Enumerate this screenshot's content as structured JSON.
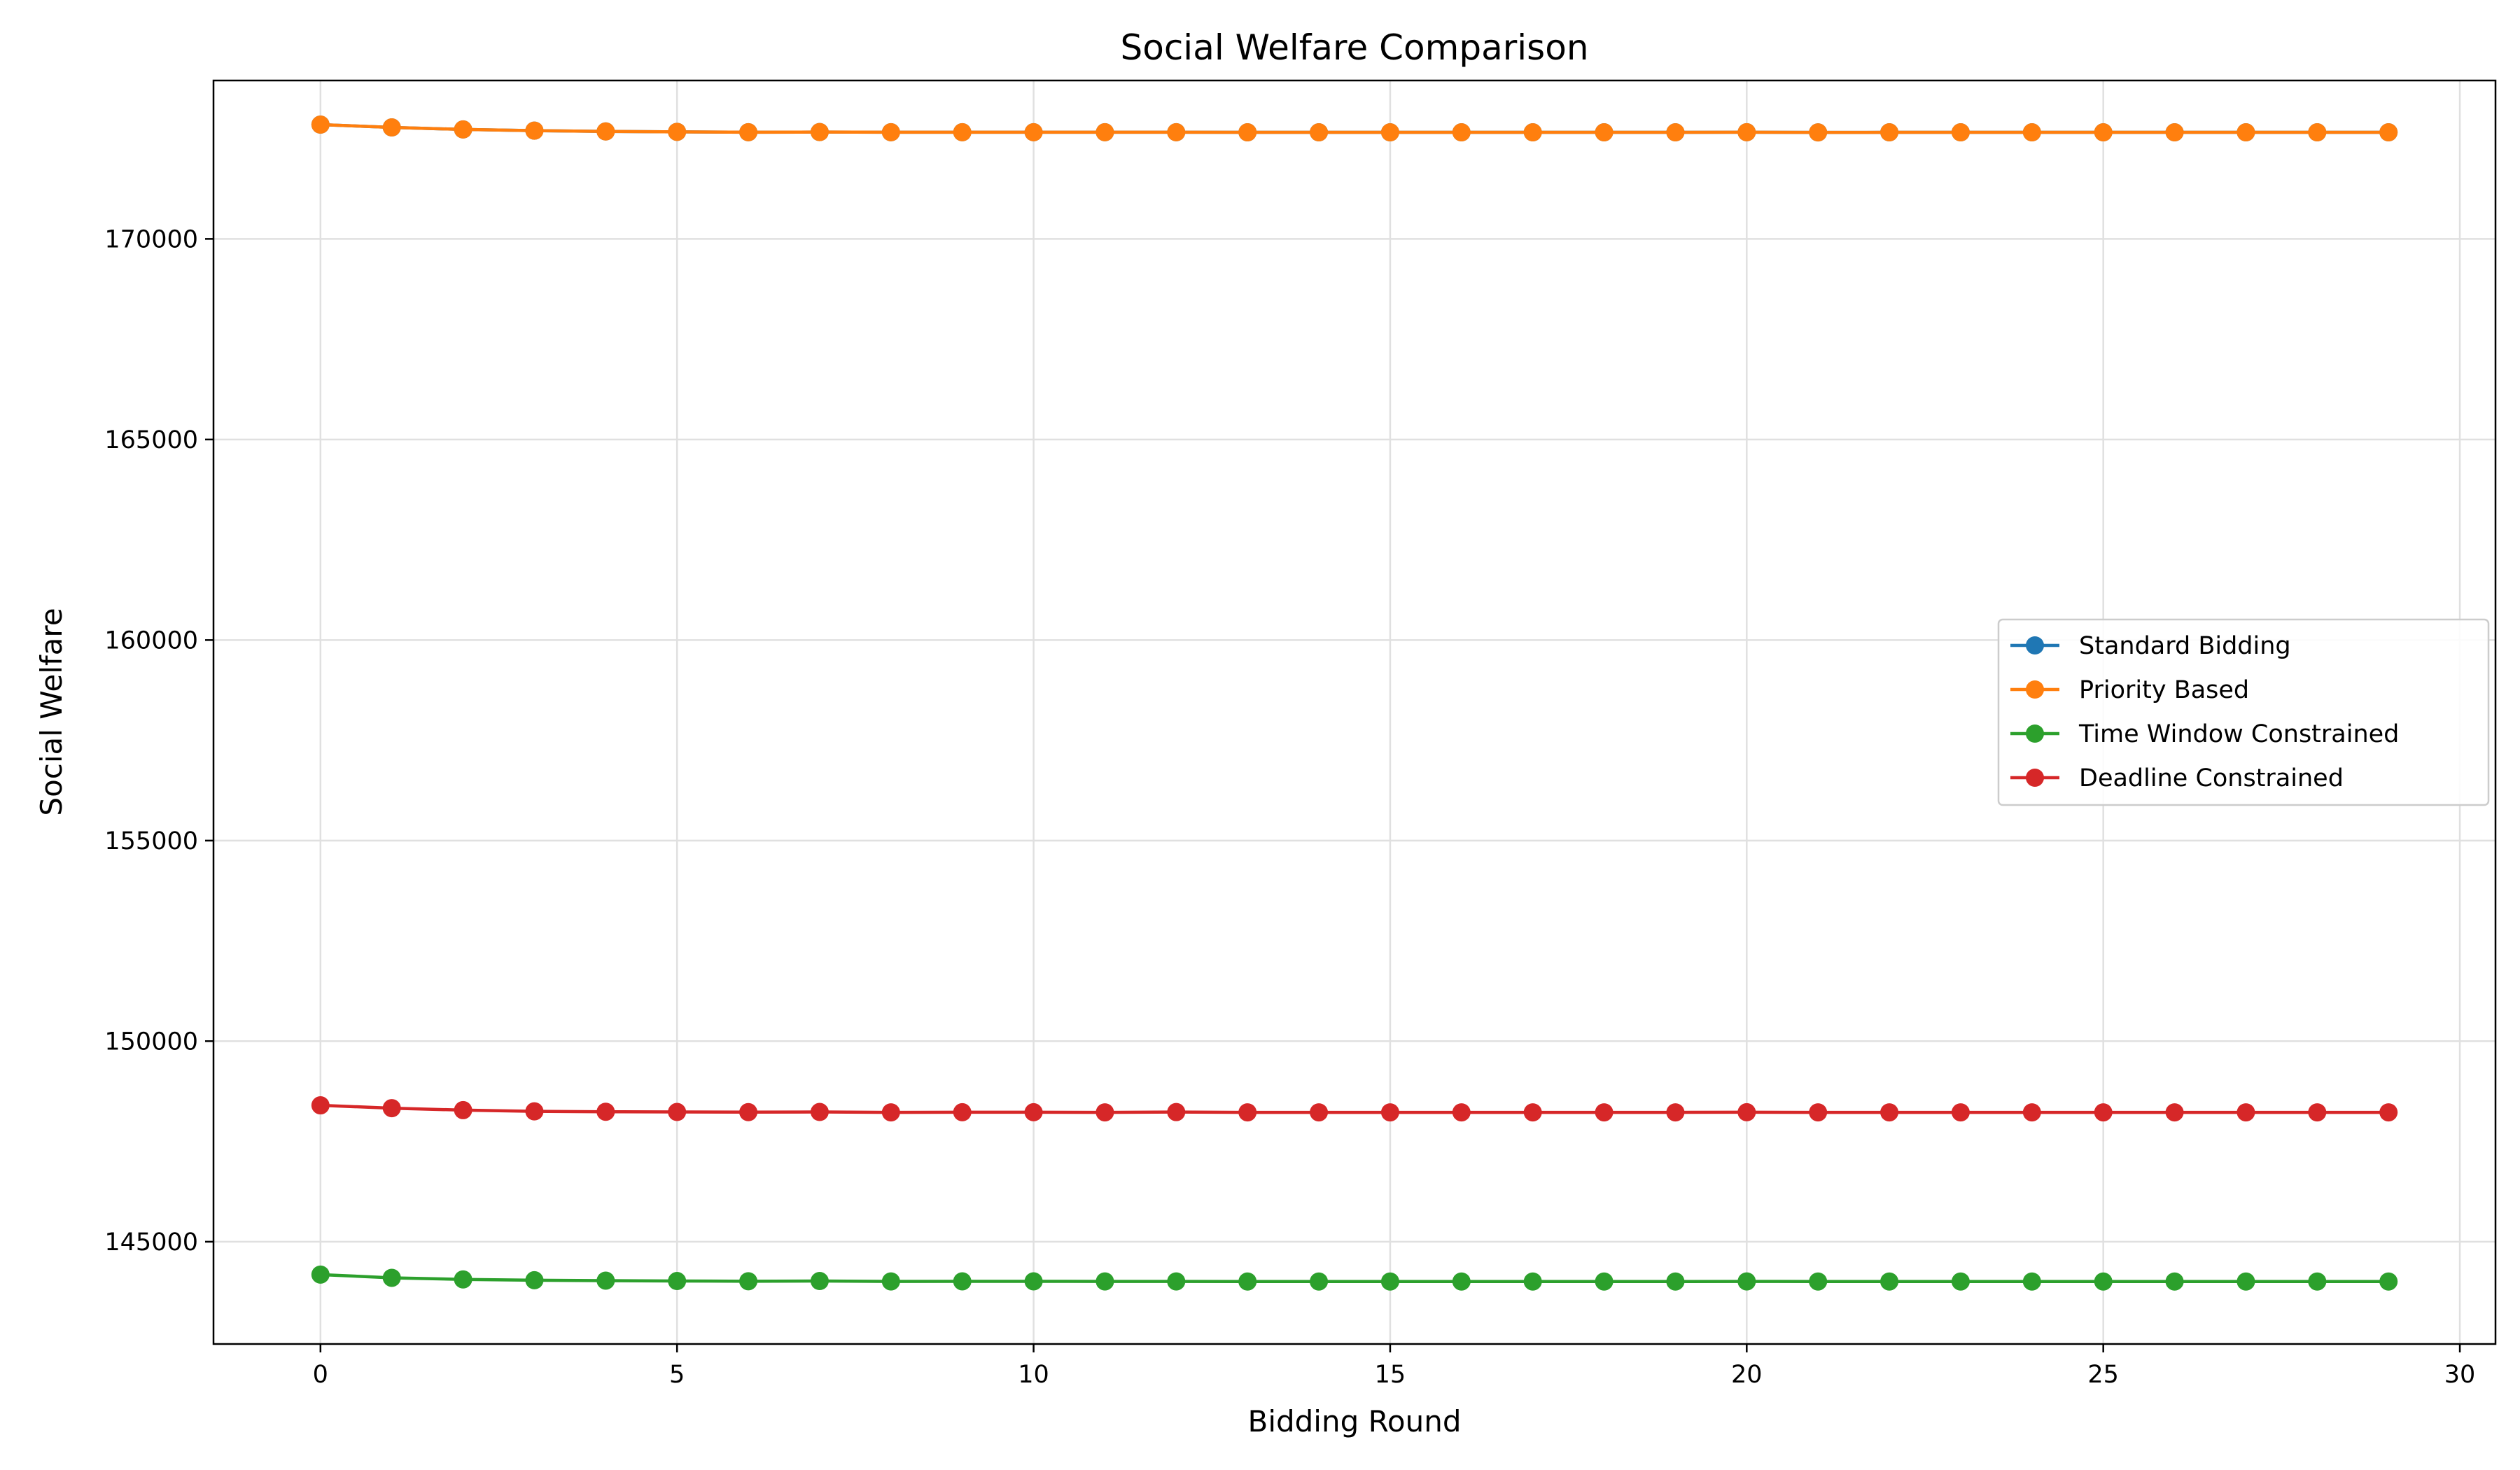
{
  "chart_data": {
    "type": "line",
    "title": "Social Welfare Comparison",
    "xlabel": "Bidding Round",
    "ylabel": "Social Welfare",
    "xlim": [
      -1.5,
      30.5
    ],
    "ylim": [
      142450,
      173950
    ],
    "xticks": [
      0,
      5,
      10,
      15,
      20,
      25,
      30
    ],
    "yticks": [
      145000,
      150000,
      155000,
      160000,
      165000,
      170000
    ],
    "grid": true,
    "legend_position": "center-right",
    "x": [
      0,
      1,
      2,
      3,
      4,
      5,
      6,
      7,
      8,
      9,
      10,
      11,
      12,
      13,
      14,
      15,
      16,
      17,
      18,
      19,
      20,
      21,
      22,
      23,
      24,
      25,
      26,
      27,
      28,
      29
    ],
    "series": [
      {
        "name": "Standard Bidding",
        "color": "#1f77b4",
        "values": [
          172850,
          172780,
          172730,
          172700,
          172680,
          172670,
          172660,
          172665,
          172660,
          172660,
          172660,
          172660,
          172660,
          172658,
          172658,
          172658,
          172658,
          172658,
          172658,
          172658,
          172660,
          172656,
          172658,
          172658,
          172658,
          172658,
          172658,
          172658,
          172658,
          172658
        ]
      },
      {
        "name": "Priority Based",
        "color": "#ff7f0e",
        "values": [
          172850,
          172780,
          172730,
          172700,
          172680,
          172670,
          172660,
          172665,
          172660,
          172660,
          172660,
          172660,
          172660,
          172658,
          172658,
          172658,
          172658,
          172658,
          172658,
          172658,
          172660,
          172656,
          172658,
          172658,
          172658,
          172658,
          172658,
          172658,
          172658,
          172658
        ]
      },
      {
        "name": "Time Window Constrained",
        "color": "#2ca02c",
        "values": [
          144180,
          144100,
          144060,
          144040,
          144030,
          144020,
          144015,
          144020,
          144010,
          144012,
          144012,
          144010,
          144010,
          144008,
          144008,
          144008,
          144008,
          144008,
          144008,
          144008,
          144010,
          144008,
          144008,
          144008,
          144008,
          144008,
          144008,
          144008,
          144008,
          144008
        ]
      },
      {
        "name": "Deadline Constrained",
        "color": "#d62728",
        "values": [
          148400,
          148330,
          148280,
          148250,
          148240,
          148235,
          148230,
          148235,
          148225,
          148228,
          148228,
          148225,
          148232,
          148225,
          148225,
          148225,
          148225,
          148225,
          148225,
          148225,
          148228,
          148225,
          148225,
          148225,
          148225,
          148225,
          148225,
          148225,
          148225,
          148225
        ]
      }
    ]
  }
}
